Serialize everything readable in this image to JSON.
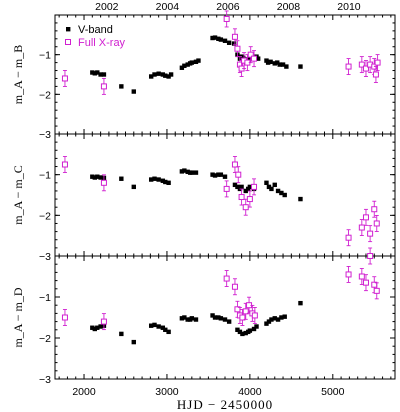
{
  "chart_data": [
    {
      "type": "scatter",
      "ylabel": "m_A − m_B",
      "ylim": [
        -3,
        0
      ],
      "yticks": [
        -1,
        -2,
        -3
      ],
      "legend": {
        "placement": "top-left",
        "entries": [
          "V-band",
          "Full X-ray"
        ]
      },
      "series": [
        {
          "name": "V-band",
          "marker": "filled-square",
          "color": "#000000",
          "x": [
            2100,
            2130,
            2160,
            2200,
            2240,
            2450,
            2600,
            2810,
            2850,
            2900,
            2950,
            2980,
            3020,
            3050,
            3180,
            3210,
            3250,
            3280,
            3300,
            3350,
            3380,
            3550,
            3580,
            3620,
            3650,
            3700,
            3750,
            3810,
            3850,
            3880,
            3900,
            3920,
            3950,
            3980,
            4000,
            4050,
            4080,
            4100,
            4200,
            4220,
            4250,
            4300,
            4330,
            4360,
            4400,
            4440,
            4610
          ],
          "y": [
            -1.45,
            -1.47,
            -1.45,
            -1.5,
            -1.5,
            -1.8,
            -1.93,
            -1.55,
            -1.5,
            -1.48,
            -1.5,
            -1.53,
            -1.55,
            -1.5,
            -1.33,
            -1.28,
            -1.25,
            -1.22,
            -1.2,
            -1.18,
            -1.15,
            -0.58,
            -0.57,
            -0.6,
            -0.62,
            -0.65,
            -0.7,
            -0.72,
            -1.0,
            -1.1,
            -1.05,
            -1.08,
            -1.12,
            -1.15,
            -1.1,
            -1.08,
            -1.05,
            -1.1,
            -1.15,
            -1.2,
            -1.18,
            -1.22,
            -1.2,
            -1.25,
            -1.25,
            -1.3,
            -1.3
          ]
        },
        {
          "name": "Full X-ray",
          "marker": "open-square",
          "color": "#d020d0",
          "x": [
            1770,
            2240,
            3720,
            3820,
            3850,
            3880,
            3900,
            3930,
            3970,
            4010,
            4050,
            5190,
            5350,
            5400,
            5450,
            5500,
            5520,
            5540
          ],
          "y": [
            -1.6,
            -1.8,
            -0.1,
            -0.55,
            -0.85,
            -1.25,
            -1.35,
            -1.15,
            -1.2,
            -1.0,
            -1.1,
            -1.3,
            -1.25,
            -1.35,
            -1.25,
            -1.3,
            -1.5,
            -1.2
          ]
        }
      ]
    },
    {
      "type": "scatter",
      "ylabel": "m_A − m_C",
      "ylim": [
        -3,
        0
      ],
      "yticks": [
        -1,
        -2,
        -3
      ],
      "series": [
        {
          "name": "V-band",
          "marker": "filled-square",
          "color": "#000000",
          "x": [
            2100,
            2130,
            2160,
            2200,
            2240,
            2450,
            2600,
            2810,
            2850,
            2900,
            2950,
            2980,
            3020,
            3180,
            3210,
            3250,
            3280,
            3300,
            3350,
            3550,
            3580,
            3620,
            3650,
            3700,
            3820,
            3850,
            3880,
            3900,
            3950,
            3980,
            4000,
            4050,
            4200,
            4230,
            4260,
            4300,
            4340,
            4380,
            4420,
            4610
          ],
          "y": [
            -1.05,
            -1.07,
            -1.05,
            -1.07,
            -1.08,
            -1.1,
            -1.3,
            -1.12,
            -1.1,
            -1.12,
            -1.15,
            -1.18,
            -1.2,
            -0.92,
            -0.9,
            -0.93,
            -0.95,
            -0.95,
            -0.95,
            -1.0,
            -1.02,
            -1.0,
            -1.0,
            -1.05,
            -1.25,
            -1.3,
            -1.35,
            -1.3,
            -1.4,
            -1.35,
            -1.3,
            -1.35,
            -1.2,
            -1.3,
            -1.35,
            -1.25,
            -1.4,
            -1.45,
            -1.5,
            -1.6
          ]
        },
        {
          "name": "Full X-ray",
          "marker": "open-square",
          "color": "#d020d0",
          "x": [
            1770,
            2240,
            3720,
            3820,
            3860,
            3900,
            3950,
            4000,
            4050,
            5190,
            5350,
            5400,
            5450,
            5500,
            5530
          ],
          "y": [
            -0.75,
            -1.2,
            -1.35,
            -0.75,
            -1.0,
            -1.55,
            -1.8,
            -1.6,
            -1.3,
            -2.55,
            -2.3,
            -2.05,
            -2.45,
            -1.85,
            -2.2
          ]
        }
      ]
    },
    {
      "type": "scatter",
      "ylabel": "m_A − m_D",
      "ylim": [
        -3,
        0
      ],
      "yticks": [
        -1,
        -2,
        -3
      ],
      "series": [
        {
          "name": "V-band",
          "marker": "filled-square",
          "color": "#000000",
          "x": [
            2100,
            2130,
            2160,
            2200,
            2240,
            2450,
            2600,
            2810,
            2850,
            2900,
            2950,
            2980,
            3020,
            3180,
            3210,
            3250,
            3280,
            3300,
            3350,
            3550,
            3580,
            3620,
            3650,
            3700,
            3750,
            3850,
            3880,
            3910,
            3950,
            3980,
            4000,
            4050,
            4080,
            4200,
            4230,
            4260,
            4300,
            4340,
            4380,
            4420,
            4610
          ],
          "y": [
            -1.75,
            -1.78,
            -1.75,
            -1.72,
            -1.7,
            -1.9,
            -2.1,
            -1.7,
            -1.68,
            -1.72,
            -1.75,
            -1.8,
            -1.85,
            -1.52,
            -1.5,
            -1.55,
            -1.55,
            -1.52,
            -1.55,
            -1.45,
            -1.5,
            -1.5,
            -1.52,
            -1.55,
            -1.6,
            -1.8,
            -1.85,
            -1.9,
            -1.88,
            -1.85,
            -1.82,
            -1.78,
            -1.72,
            -1.65,
            -1.6,
            -1.55,
            -1.52,
            -1.55,
            -1.5,
            -1.48,
            -1.15
          ]
        },
        {
          "name": "Full X-ray",
          "marker": "open-square",
          "color": "#d020d0",
          "x": [
            1770,
            2240,
            3720,
            3820,
            3850,
            3880,
            3910,
            3950,
            3990,
            4030,
            4060,
            5190,
            5350,
            5400,
            5450,
            5500,
            5530
          ],
          "y": [
            -1.5,
            -1.6,
            -0.55,
            -0.75,
            -1.3,
            -1.45,
            -1.5,
            -1.35,
            -1.2,
            -1.4,
            -1.45,
            -0.45,
            -0.5,
            -0.65,
            -0.0,
            -0.7,
            -0.85
          ]
        }
      ]
    }
  ],
  "x_axis": {
    "label": "HJD − 2450000",
    "range": [
      1650,
      5750
    ],
    "ticks": [
      2000,
      3000,
      4000,
      5000
    ],
    "top_label_values": [
      2002,
      2004,
      2006,
      2008,
      2010
    ],
    "top_label_positions": [
      2275,
      3005,
      3735,
      4465,
      5195
    ]
  }
}
